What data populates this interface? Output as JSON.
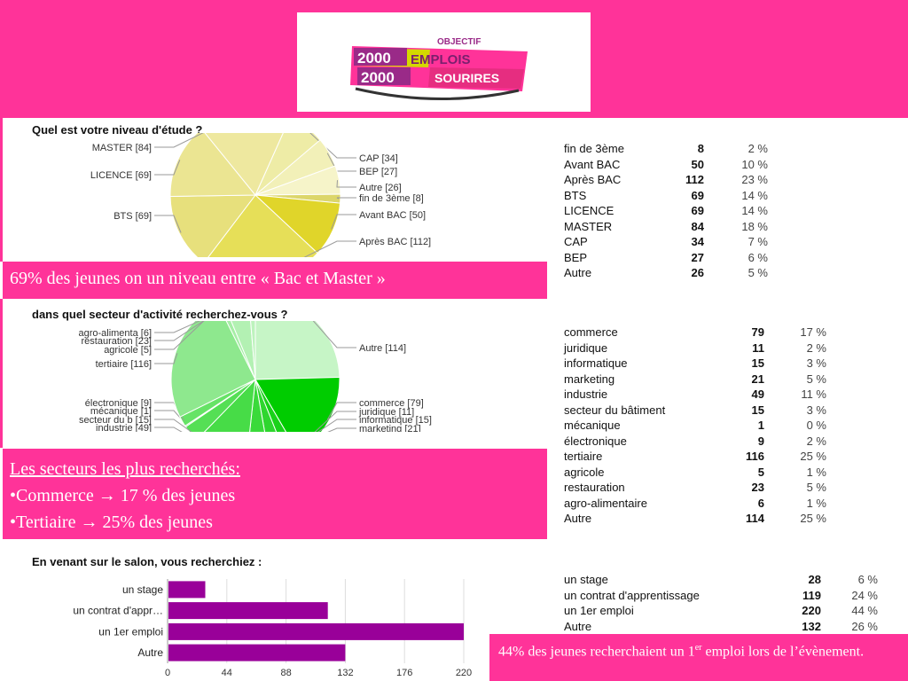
{
  "logo": {
    "objectif": "OBJECTIF",
    "line1_num": "2000",
    "line1_word": "EMPLOIS",
    "line2_num": "2000",
    "line2_word": "SOURIRES"
  },
  "section1": {
    "callout": "69% des jeunes on un niveau entre « Bac et Master »",
    "stats": [
      {
        "label": "fin de 3ème",
        "count": "8",
        "pct": "2 %"
      },
      {
        "label": "Avant BAC",
        "count": "50",
        "pct": "10 %"
      },
      {
        "label": "Après BAC",
        "count": "112",
        "pct": "23 %"
      },
      {
        "label": "BTS",
        "count": "69",
        "pct": "14 %"
      },
      {
        "label": "LICENCE",
        "count": "69",
        "pct": "14 %"
      },
      {
        "label": "MASTER",
        "count": "84",
        "pct": "18 %"
      },
      {
        "label": "CAP",
        "count": "34",
        "pct": "7 %"
      },
      {
        "label": "BEP",
        "count": "27",
        "pct": "6 %"
      },
      {
        "label": "Autre",
        "count": "26",
        "pct": "5 %"
      }
    ]
  },
  "section2": {
    "callout_title": "Les secteurs les plus recherchés:",
    "callout_line1": "•Commerce → 17 % des jeunes",
    "callout_line2": "•Tertiaire → 25% des jeunes",
    "stats": [
      {
        "label": "commerce",
        "count": "79",
        "pct": "17 %"
      },
      {
        "label": "juridique",
        "count": "11",
        "pct": "2 %"
      },
      {
        "label": "informatique",
        "count": "15",
        "pct": "3 %"
      },
      {
        "label": "marketing",
        "count": "21",
        "pct": "5 %"
      },
      {
        "label": "industrie",
        "count": "49",
        "pct": "11 %"
      },
      {
        "label": "secteur du bâtiment",
        "count": "15",
        "pct": "3 %"
      },
      {
        "label": "mécanique",
        "count": "1",
        "pct": "0 %"
      },
      {
        "label": "électronique",
        "count": "9",
        "pct": "2 %"
      },
      {
        "label": "tertiaire",
        "count": "116",
        "pct": "25 %"
      },
      {
        "label": "agricole",
        "count": "5",
        "pct": "1 %"
      },
      {
        "label": "restauration",
        "count": "23",
        "pct": "5 %"
      },
      {
        "label": "agro-alimentaire",
        "count": "6",
        "pct": "1 %"
      },
      {
        "label": "Autre",
        "count": "114",
        "pct": "25 %"
      }
    ]
  },
  "section3": {
    "callout_prefix": "44% des jeunes recherchaient un 1",
    "callout_sup": "er",
    "callout_suffix": " emploi lors de l’évènement.",
    "stats": [
      {
        "label": "un stage",
        "count": "28",
        "pct": "6 %"
      },
      {
        "label": "un contrat d'apprentissage",
        "count": "119",
        "pct": "24 %"
      },
      {
        "label": "un 1er emploi",
        "count": "220",
        "pct": "44 %"
      },
      {
        "label": "Autre",
        "count": "132",
        "pct": "26 %"
      }
    ]
  },
  "chart_data": [
    {
      "type": "pie",
      "title": "Quel est votre niveau d'étude ?",
      "slices": [
        {
          "label": "CAP [34]",
          "value": 34,
          "color": "#eeeca6"
        },
        {
          "label": "BEP [27]",
          "value": 27,
          "color": "#f2f0b8"
        },
        {
          "label": "Autre [26]",
          "value": 26,
          "color": "#f6f4c9"
        },
        {
          "label": "fin de 3ème [8]",
          "value": 8,
          "color": "#dcd66a"
        },
        {
          "label": "Avant BAC [50]",
          "value": 50,
          "color": "#e0d52a"
        },
        {
          "label": "Après BAC [112]",
          "value": 112,
          "color": "#e6df58"
        },
        {
          "label": "BTS [69]",
          "value": 69,
          "color": "#e7e07c"
        },
        {
          "label": "LICENCE [69]",
          "value": 69,
          "color": "#ebe592"
        },
        {
          "label": "MASTER [84]",
          "value": 84,
          "color": "#eee89f"
        }
      ]
    },
    {
      "type": "pie",
      "title": "dans quel secteur d'activité recherchez-vous ?",
      "slices": [
        {
          "label": "Autre [114]",
          "value": 114,
          "color": "#c6f5c6"
        },
        {
          "label": "commerce [79]",
          "value": 79,
          "color": "#00cc00"
        },
        {
          "label": "juridique [11]",
          "value": 11,
          "color": "#19d219"
        },
        {
          "label": "informatique [15]",
          "value": 15,
          "color": "#2ed62e"
        },
        {
          "label": "marketing [21]",
          "value": 21,
          "color": "#3ada3a"
        },
        {
          "label": "industrie [49]",
          "value": 49,
          "color": "#47dc47"
        },
        {
          "label": "secteur du b [15]",
          "value": 15,
          "color": "#55df55"
        },
        {
          "label": "mécanique [1]",
          "value": 1,
          "color": "#5fe15f"
        },
        {
          "label": "électronique [9]",
          "value": 9,
          "color": "#66e366"
        },
        {
          "label": "tertiaire [116]",
          "value": 116,
          "color": "#8ee88e"
        },
        {
          "label": "agricole [5]",
          "value": 5,
          "color": "#a6eea6"
        },
        {
          "label": "restauration [23]",
          "value": 23,
          "color": "#b3f1b3"
        },
        {
          "label": "agro-alimenta [6]",
          "value": 6,
          "color": "#bdf3bd"
        }
      ]
    },
    {
      "type": "bar",
      "orientation": "horizontal",
      "title": "En venant sur le salon, vous recherchiez :",
      "categories": [
        "un stage",
        "un contrat d'appr…",
        "un 1er emploi",
        "Autre"
      ],
      "values": [
        28,
        119,
        220,
        132
      ],
      "xlim": [
        0,
        220
      ],
      "xticks": [
        0,
        44,
        88,
        132,
        176,
        220
      ],
      "color": "#990099"
    }
  ]
}
